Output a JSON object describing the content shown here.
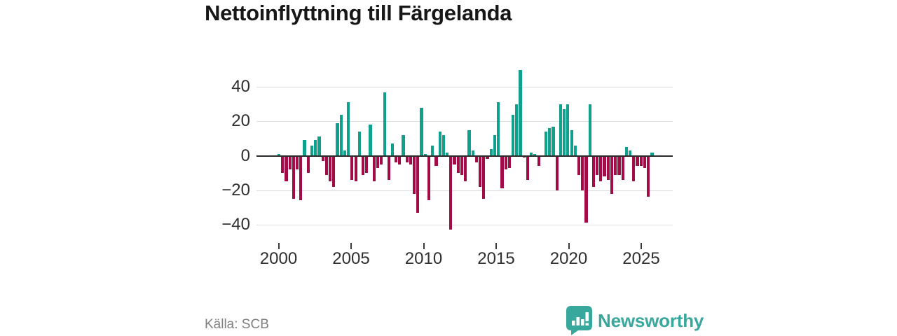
{
  "title": "Nettoinflyttning till Färgelanda",
  "source": "Källa: SCB",
  "branding": {
    "name": "Newsworthy",
    "color": "#38a79c"
  },
  "colors": {
    "positive_bar": "#10a18c",
    "negative_bar": "#a10c47",
    "gridline": "#dedede",
    "zero_line": "#2b2b2b",
    "title_text": "#171717",
    "axis_text": "#2f2f2f",
    "source_text": "#808080",
    "background": "#ffffff"
  },
  "chart_data": {
    "type": "bar",
    "title": "Nettoinflyttning till Färgelanda",
    "frequency": "quarterly",
    "start_period": "2000Q1",
    "x_tick_labels": [
      "2000",
      "2005",
      "2010",
      "2015",
      "2020",
      "2025"
    ],
    "y_ticks": [
      40,
      20,
      0,
      -20,
      -40
    ],
    "y_tick_labels": [
      "40",
      "20",
      "0",
      "−20",
      "−40"
    ],
    "ylim": [
      -47,
      55
    ],
    "grid": "horizontal",
    "legend": "none",
    "bar_color_rule": "teal for positive values, crimson for negative values",
    "values": [
      1,
      -10,
      -15,
      -8,
      -25,
      -8,
      -26,
      9,
      -10,
      6,
      9,
      11,
      -3,
      -11,
      -15,
      -18,
      19,
      24,
      3,
      31,
      -14,
      -15,
      14,
      -11,
      -10,
      18,
      -15,
      -7,
      -5,
      37,
      -14,
      7,
      -4,
      -5,
      12,
      -4,
      -5,
      -22,
      -33,
      28,
      1,
      -26,
      6,
      -6,
      14,
      12,
      2,
      -43,
      -5,
      -10,
      -11,
      -15,
      15,
      3,
      -4,
      -18,
      -25,
      -2,
      4,
      12,
      31,
      -19,
      -8,
      -7,
      24,
      30,
      50,
      -1,
      -14,
      2,
      1,
      -6,
      0,
      14,
      16,
      17,
      -20,
      30,
      27,
      30,
      15,
      6,
      -11,
      -20,
      -39,
      30,
      -18,
      -11,
      -15,
      -12,
      -14,
      -22,
      -11,
      -11,
      -14,
      5,
      3,
      -15,
      -6,
      -6,
      -7,
      -24,
      2
    ]
  }
}
